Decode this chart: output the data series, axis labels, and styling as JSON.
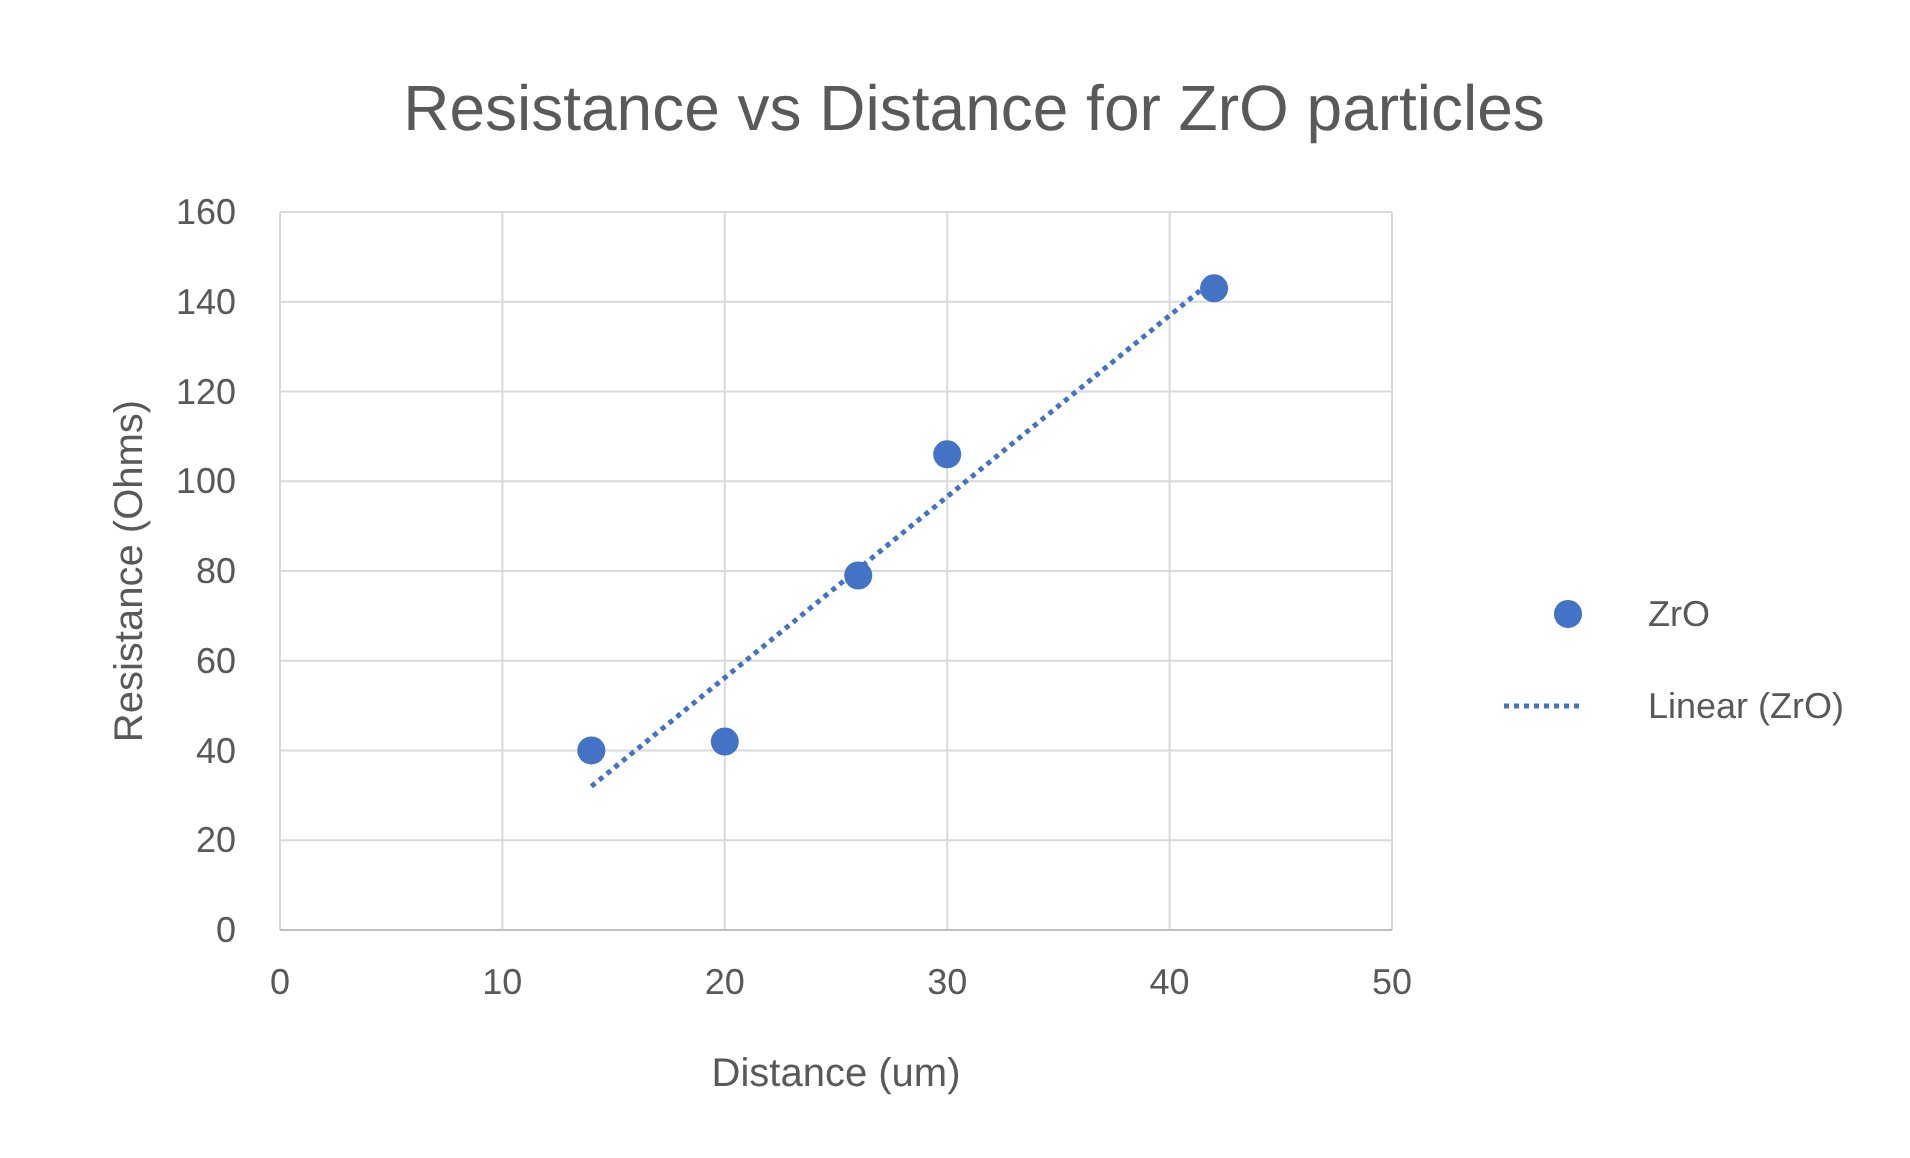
{
  "chart_data": {
    "type": "scatter",
    "title": "Resistance vs Distance for ZrO particles",
    "xlabel": "Distance (um)",
    "ylabel": "Resistance (Ohms)",
    "xlim": [
      0,
      50
    ],
    "xticks": [
      0,
      10,
      20,
      30,
      40,
      50
    ],
    "ylim": [
      0,
      160
    ],
    "yticks": [
      0,
      20,
      40,
      60,
      80,
      100,
      120,
      140,
      160
    ],
    "grid": true,
    "legend": "right",
    "series": [
      {
        "name": "ZrO",
        "color": "#4472c4",
        "marker": "circle",
        "x": [
          14,
          20,
          26,
          30,
          42
        ],
        "values": [
          40,
          42,
          79,
          106,
          143
        ]
      },
      {
        "name": "Linear (ZrO)",
        "type": "line",
        "color": "#4472c4",
        "line_style": "dotted",
        "marker": "none",
        "x": [
          14,
          42
        ],
        "values": [
          32,
          145
        ]
      }
    ]
  }
}
